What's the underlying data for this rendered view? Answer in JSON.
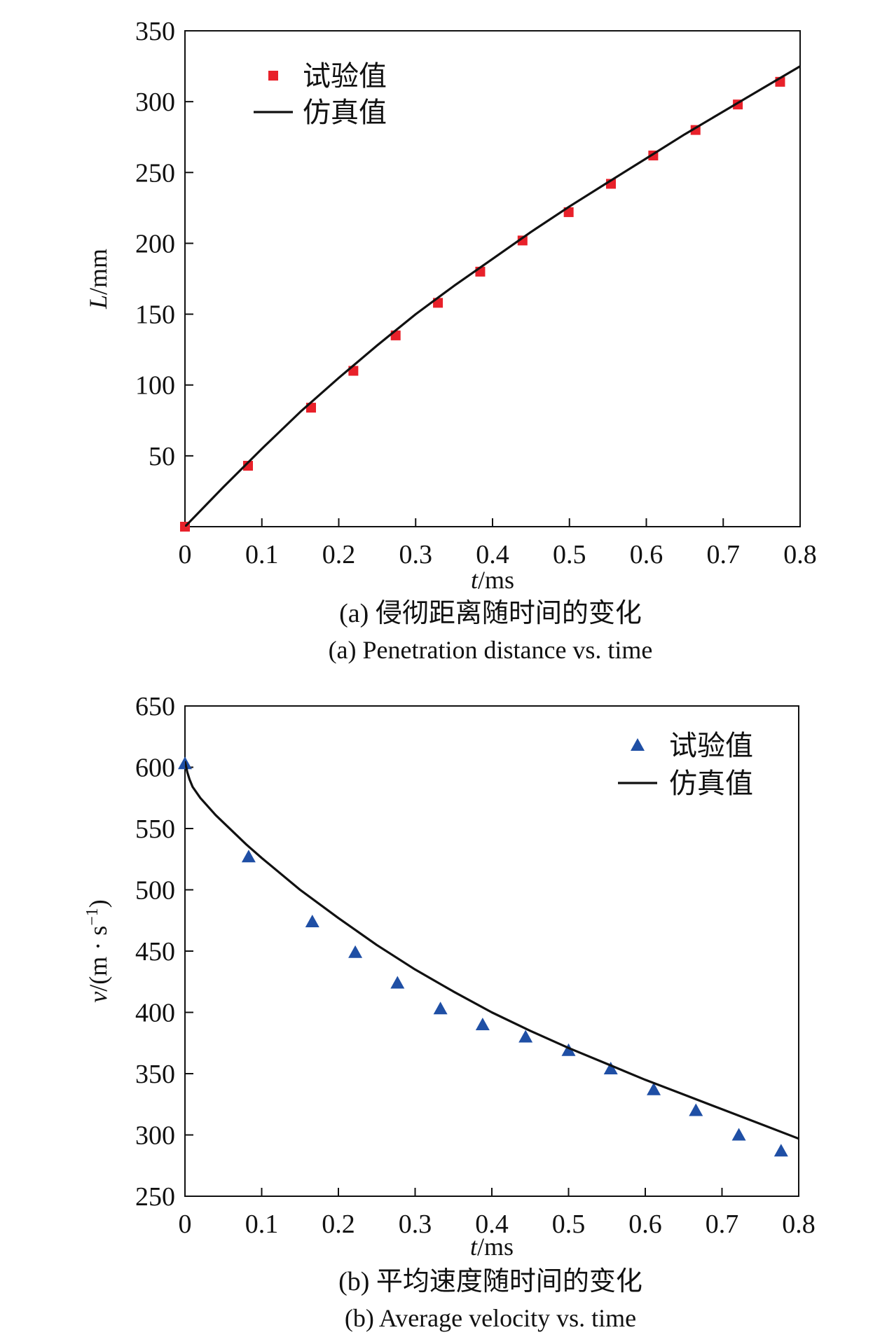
{
  "chart_data": [
    {
      "type": "scatter+line",
      "caption_cn": "(a) 侵彻距离随时间的变化",
      "caption_en": "(a) Penetration distance  vs. time",
      "xlabel_var": "t",
      "xlabel_unit": "/ms",
      "ylabel_var": "L",
      "ylabel_unit": "/mm",
      "xlim": [
        0,
        0.8
      ],
      "ylim": [
        0,
        350
      ],
      "x_ticks": [
        0,
        0.1,
        0.2,
        0.3,
        0.4,
        0.5,
        0.6,
        0.7,
        0.8
      ],
      "x_tick_labels": [
        "0",
        "0.1",
        "0.2",
        "0.3",
        "0.4",
        "0.5",
        "0.6",
        "0.7",
        "0.8"
      ],
      "y_ticks": [
        50,
        100,
        150,
        200,
        250,
        300,
        350
      ],
      "y_tick_labels": [
        "50",
        "100",
        "150",
        "200",
        "250",
        "300",
        "350"
      ],
      "legend_position": "top-left",
      "marker_color": "#e8212a",
      "line_color": "#111111",
      "series": [
        {
          "name": "试验值",
          "kind": "marker-square",
          "x": [
            0.0,
            0.082,
            0.164,
            0.219,
            0.274,
            0.329,
            0.384,
            0.439,
            0.499,
            0.554,
            0.609,
            0.664,
            0.719,
            0.774
          ],
          "y": [
            0,
            43,
            84,
            110,
            135,
            158,
            180,
            202,
            222,
            242,
            262,
            280,
            298,
            314
          ]
        },
        {
          "name": "仿真值",
          "kind": "line",
          "x": [
            0.0,
            0.05,
            0.1,
            0.15,
            0.2,
            0.25,
            0.3,
            0.35,
            0.4,
            0.45,
            0.5,
            0.55,
            0.6,
            0.65,
            0.7,
            0.75,
            0.8
          ],
          "y": [
            0,
            28,
            55,
            81,
            105,
            128,
            150,
            170,
            189,
            208,
            226,
            243,
            260,
            277,
            293,
            309,
            325
          ]
        }
      ]
    },
    {
      "type": "scatter+line",
      "caption_cn": "(b) 平均速度随时间的变化",
      "caption_en": "(b) Average velocity vs. time",
      "xlabel_var": "t",
      "xlabel_unit": "/ms",
      "ylabel_var": "v",
      "ylabel_unit": "/(m · s",
      "ylabel_sup": "−1",
      "ylabel_close": ")",
      "xlim": [
        0,
        0.8
      ],
      "ylim": [
        250,
        650
      ],
      "x_ticks": [
        0,
        0.1,
        0.2,
        0.3,
        0.4,
        0.5,
        0.6,
        0.7,
        0.8
      ],
      "x_tick_labels": [
        "0",
        "0.1",
        "0.2",
        "0.3",
        "0.4",
        "0.5",
        "0.6",
        "0.7",
        "0.8"
      ],
      "y_ticks": [
        250,
        300,
        350,
        400,
        450,
        500,
        550,
        600,
        650
      ],
      "y_tick_labels": [
        "250",
        "300",
        "350",
        "400",
        "450",
        "500",
        "550",
        "600",
        "650"
      ],
      "legend_position": "top-right",
      "marker_color": "#1f4fa5",
      "line_color": "#111111",
      "series": [
        {
          "name": "试验值",
          "kind": "marker-triangle",
          "x": [
            0.0,
            0.083,
            0.166,
            0.222,
            0.277,
            0.333,
            0.388,
            0.444,
            0.5,
            0.555,
            0.611,
            0.666,
            0.722,
            0.777
          ],
          "y": [
            603,
            527,
            474,
            449,
            424,
            403,
            390,
            380,
            369,
            354,
            337,
            320,
            300,
            287
          ]
        },
        {
          "name": "仿真值",
          "kind": "line",
          "x": [
            0.0,
            0.003,
            0.006,
            0.01,
            0.02,
            0.04,
            0.06,
            0.08,
            0.1,
            0.15,
            0.2,
            0.25,
            0.3,
            0.35,
            0.4,
            0.45,
            0.5,
            0.55,
            0.6,
            0.65,
            0.7,
            0.75,
            0.8
          ],
          "y": [
            605,
            596,
            590,
            584,
            575,
            561,
            549,
            537,
            526,
            500,
            477,
            455,
            435,
            417,
            400,
            385,
            371,
            358,
            345,
            333,
            321,
            309,
            297
          ]
        }
      ]
    }
  ]
}
